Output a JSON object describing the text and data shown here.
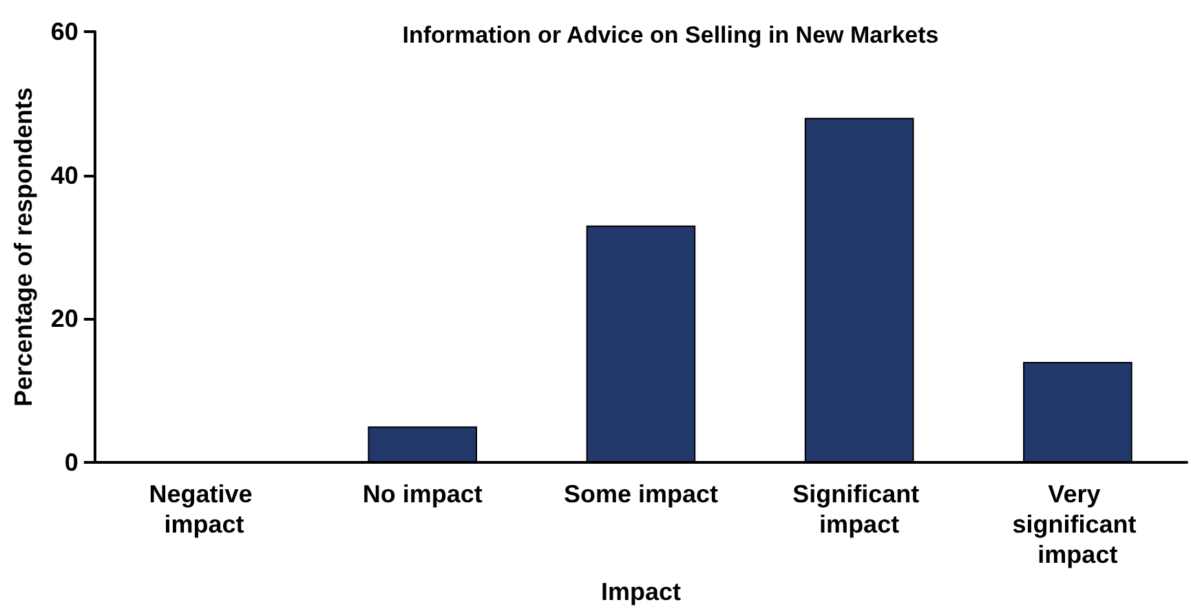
{
  "chart_data": {
    "type": "bar",
    "title": "Information or Advice on Selling in New Markets",
    "xlabel": "Impact",
    "ylabel": "Percentage of respondents",
    "categories": [
      "Negative impact",
      "No impact",
      "Some impact",
      "Significant impact",
      "Very significant impact"
    ],
    "values": [
      0,
      5,
      33,
      48,
      14
    ],
    "color": "#22386b",
    "ylim": [
      0,
      60
    ],
    "yticks": [
      0,
      20,
      40,
      60
    ],
    "grid": false
  }
}
